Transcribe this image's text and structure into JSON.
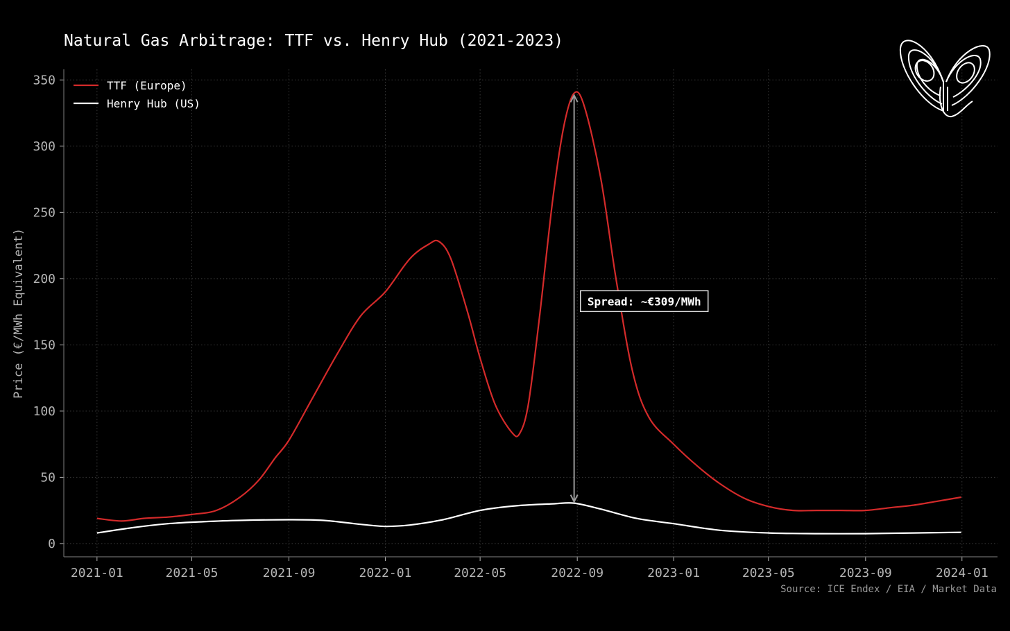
{
  "chart_data": {
    "type": "line",
    "title": "Natural Gas Arbitrage: TTF vs. Henry Hub (2021-2023)",
    "xlabel": "",
    "ylabel": "Price (€/MWh Equivalent)",
    "x_range": [
      "2020-11-20",
      "2024-02-15"
    ],
    "ylim": [
      -10,
      358
    ],
    "y_ticks": [
      0,
      50,
      100,
      150,
      200,
      250,
      300,
      350
    ],
    "x_ticks": [
      "2021-01",
      "2021-05",
      "2021-09",
      "2022-01",
      "2022-05",
      "2022-09",
      "2023-01",
      "2023-05",
      "2023-09",
      "2024-01"
    ],
    "grid": true,
    "legend_position": "top-left",
    "series": [
      {
        "name": "TTF (Europe)",
        "color": "#d42a2a",
        "points": [
          [
            "2021-01-01",
            19
          ],
          [
            "2021-02-01",
            17
          ],
          [
            "2021-03-01",
            19
          ],
          [
            "2021-04-01",
            20
          ],
          [
            "2021-05-01",
            22
          ],
          [
            "2021-06-01",
            25
          ],
          [
            "2021-07-01",
            35
          ],
          [
            "2021-07-25",
            48
          ],
          [
            "2021-08-15",
            65
          ],
          [
            "2021-09-01",
            78
          ],
          [
            "2021-10-01",
            110
          ],
          [
            "2021-11-01",
            143
          ],
          [
            "2021-12-01",
            172
          ],
          [
            "2022-01-01",
            190
          ],
          [
            "2022-02-01",
            215
          ],
          [
            "2022-02-25",
            226
          ],
          [
            "2022-03-10",
            228
          ],
          [
            "2022-03-25",
            215
          ],
          [
            "2022-04-15",
            175
          ],
          [
            "2022-05-01",
            140
          ],
          [
            "2022-05-20",
            105
          ],
          [
            "2022-06-10",
            84
          ],
          [
            "2022-06-20",
            83
          ],
          [
            "2022-07-01",
            105
          ],
          [
            "2022-07-15",
            170
          ],
          [
            "2022-08-01",
            260
          ],
          [
            "2022-08-15",
            315
          ],
          [
            "2022-08-28",
            340
          ],
          [
            "2022-09-10",
            330
          ],
          [
            "2022-10-01",
            275
          ],
          [
            "2022-10-20",
            200
          ],
          [
            "2022-11-10",
            130
          ],
          [
            "2022-12-01",
            95
          ],
          [
            "2023-01-01",
            75
          ],
          [
            "2023-02-01",
            58
          ],
          [
            "2023-03-01",
            45
          ],
          [
            "2023-04-01",
            34
          ],
          [
            "2023-05-01",
            28
          ],
          [
            "2023-06-01",
            25
          ],
          [
            "2023-07-01",
            25
          ],
          [
            "2023-08-01",
            25
          ],
          [
            "2023-09-01",
            25
          ],
          [
            "2023-10-01",
            27
          ],
          [
            "2023-11-01",
            29
          ],
          [
            "2023-12-01",
            32
          ],
          [
            "2023-12-31",
            35
          ]
        ]
      },
      {
        "name": "Henry Hub (US)",
        "color": "#ffffff",
        "points": [
          [
            "2021-01-01",
            8
          ],
          [
            "2021-02-15",
            12
          ],
          [
            "2021-04-01",
            15
          ],
          [
            "2021-05-15",
            16.5
          ],
          [
            "2021-07-01",
            17.5
          ],
          [
            "2021-09-01",
            18
          ],
          [
            "2021-10-15",
            17.5
          ],
          [
            "2021-12-01",
            14.5
          ],
          [
            "2022-01-01",
            13
          ],
          [
            "2022-02-01",
            14
          ],
          [
            "2022-03-15",
            18
          ],
          [
            "2022-05-01",
            25
          ],
          [
            "2022-06-15",
            28.5
          ],
          [
            "2022-08-01",
            30
          ],
          [
            "2022-08-28",
            30.5
          ],
          [
            "2022-10-01",
            26
          ],
          [
            "2022-11-15",
            19
          ],
          [
            "2023-01-01",
            15
          ],
          [
            "2023-03-01",
            10
          ],
          [
            "2023-05-01",
            8
          ],
          [
            "2023-07-01",
            7.5
          ],
          [
            "2023-09-01",
            7.5
          ],
          [
            "2023-11-01",
            8
          ],
          [
            "2023-12-31",
            8.5
          ]
        ]
      }
    ],
    "annotations": [
      {
        "text": "Spread: ~€309/MWh",
        "arrow_x": "2022-08-28",
        "arrow_y_from": 30.5,
        "arrow_y_to": 339.5,
        "label_anchor_x": "2022-09-05",
        "label_anchor_y": 183
      }
    ],
    "source_note": "Source: ICE Endex / EIA / Market Data",
    "colors": {
      "background": "#000000",
      "axis_text": "#b4b4b4",
      "grid": "#3a3a3a",
      "title": "#ffffff",
      "spread_arrow": "#9a9a9a"
    }
  },
  "logo": {
    "icon": "butterfly-attractor-logo"
  }
}
